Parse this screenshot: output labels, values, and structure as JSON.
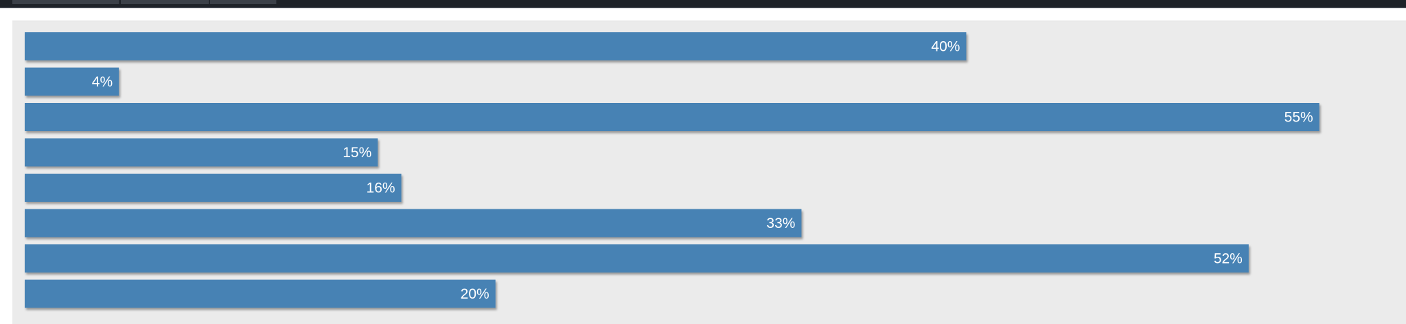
{
  "chart_data": {
    "type": "bar",
    "orientation": "horizontal",
    "values": [
      40,
      4,
      55,
      15,
      16,
      33,
      52,
      20
    ],
    "labels": [
      "40%",
      "4%",
      "55%",
      "15%",
      "16%",
      "33%",
      "52%",
      "20%"
    ],
    "xlim": [
      0,
      57.4
    ],
    "grid": false,
    "bar_color": "#4682b4",
    "background_color": "#ebebeb"
  },
  "topbar": {
    "background_color": "#1e2228",
    "tab_count": 3
  }
}
